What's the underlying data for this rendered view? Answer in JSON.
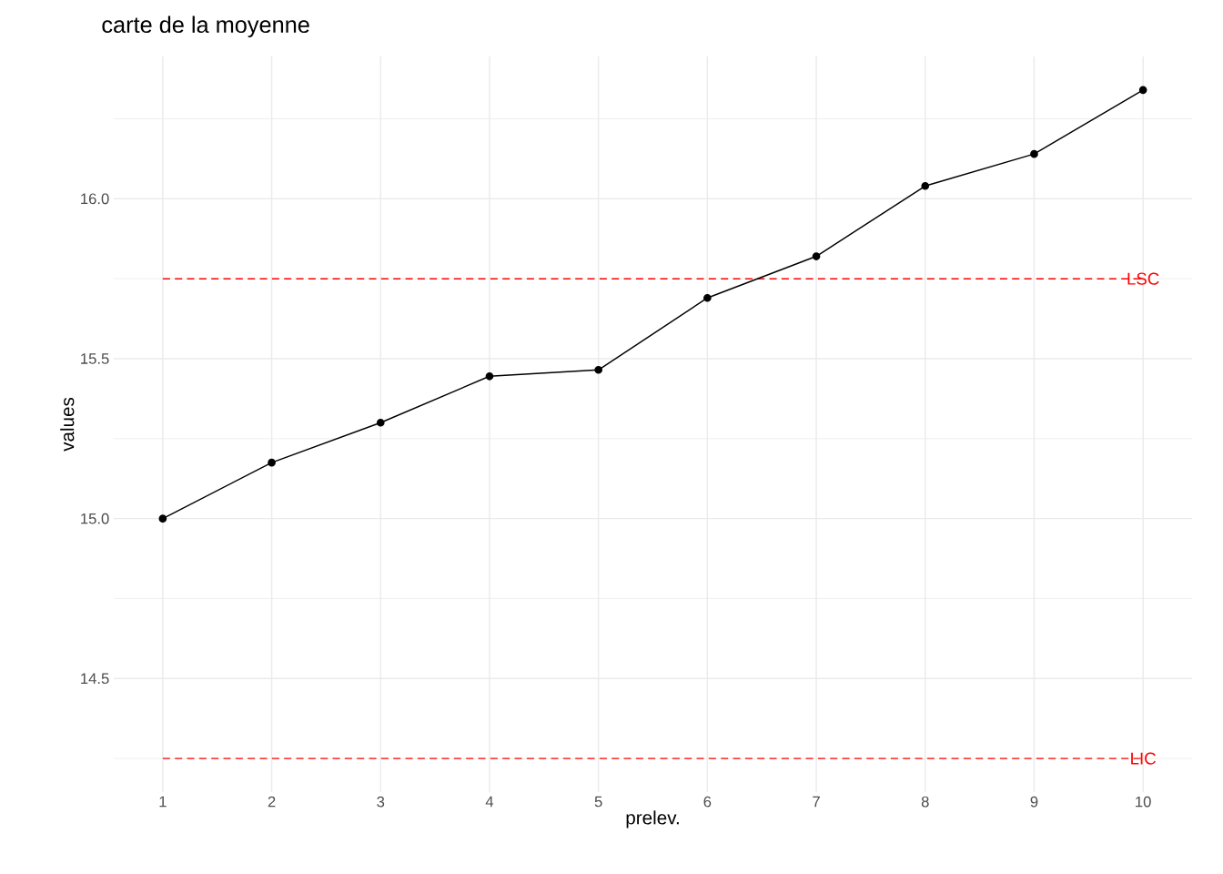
{
  "chart_data": {
    "type": "line",
    "title": "carte de la moyenne",
    "xlabel": "prelev.",
    "ylabel": "values",
    "x": [
      1,
      2,
      3,
      4,
      5,
      6,
      7,
      8,
      9,
      10
    ],
    "series": [
      {
        "color": "#000000",
        "values": [
          15.0,
          15.175,
          15.3,
          15.445,
          15.465,
          15.69,
          15.82,
          16.04,
          16.14,
          16.34
        ]
      }
    ],
    "xlim": [
      0.55,
      10.45
    ],
    "ylim": [
      14.145,
      16.445
    ],
    "xticks": [
      1,
      2,
      3,
      4,
      5,
      6,
      7,
      8,
      9,
      10
    ],
    "yticks": [
      {
        "value": 14.5,
        "label": "14.5"
      },
      {
        "value": 15.0,
        "label": "15.0"
      },
      {
        "value": 15.5,
        "label": "15.5"
      },
      {
        "value": 16.0,
        "label": "16.0"
      }
    ],
    "ref_lines": [
      {
        "axis": "y",
        "value": 15.75,
        "label": "LSC",
        "color": "#ff0000",
        "line_style": "dashed"
      },
      {
        "axis": "y",
        "value": 14.25,
        "label": "LIC",
        "color": "#ff0000",
        "line_style": "dashed"
      }
    ],
    "grid": true,
    "marker": "circle",
    "line_style": "solid"
  }
}
